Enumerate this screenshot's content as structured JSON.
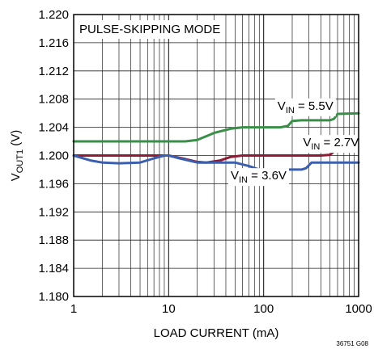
{
  "chart_data": {
    "type": "line",
    "annotation": "PULSE-SKIPPING MODE",
    "xlabel": "LOAD CURRENT (mA)",
    "ylabel_main": "V",
    "ylabel_sub": "OUT1",
    "ylabel_tail": " (V)",
    "figure_id": "36751 G08",
    "xscale": "log",
    "xlim": [
      1,
      1000
    ],
    "ylim": [
      1.18,
      1.22
    ],
    "grid": true,
    "x_ticks": [
      {
        "value": 1,
        "label": "1"
      },
      {
        "value": 10,
        "label": "10"
      },
      {
        "value": 100,
        "label": "100"
      },
      {
        "value": 1000,
        "label": "1000"
      }
    ],
    "y_ticks": [
      {
        "value": 1.18,
        "label": "1.180"
      },
      {
        "value": 1.184,
        "label": "1.184"
      },
      {
        "value": 1.188,
        "label": "1.188"
      },
      {
        "value": 1.192,
        "label": "1.192"
      },
      {
        "value": 1.196,
        "label": "1.196"
      },
      {
        "value": 1.2,
        "label": "1.200"
      },
      {
        "value": 1.204,
        "label": "1.204"
      },
      {
        "value": 1.208,
        "label": "1.208"
      },
      {
        "value": 1.212,
        "label": "1.212"
      },
      {
        "value": 1.216,
        "label": "1.216"
      },
      {
        "value": 1.22,
        "label": "1.220"
      }
    ],
    "series": [
      {
        "label_main": "V",
        "label_sub": "IN",
        "label_tail": " = 5.5V",
        "color": "#3a8f48",
        "label_pos": {
          "x": 140,
          "y": 1.2065
        },
        "points": [
          [
            1,
            1.202
          ],
          [
            4,
            1.202
          ],
          [
            10,
            1.202
          ],
          [
            15,
            1.202
          ],
          [
            20,
            1.2022
          ],
          [
            30,
            1.2032
          ],
          [
            45,
            1.2038
          ],
          [
            60,
            1.204
          ],
          [
            100,
            1.204
          ],
          [
            150,
            1.204
          ],
          [
            180,
            1.2042
          ],
          [
            200,
            1.2049
          ],
          [
            250,
            1.205
          ],
          [
            500,
            1.205
          ],
          [
            550,
            1.2052
          ],
          [
            600,
            1.2059
          ],
          [
            1000,
            1.206
          ]
        ]
      },
      {
        "label_main": "V",
        "label_sub": "IN",
        "label_tail": " = 2.7V",
        "color": "#8c1c35",
        "label_pos": {
          "x": 260,
          "y": 1.2013
        },
        "points": [
          [
            1,
            1.2
          ],
          [
            7,
            1.2
          ],
          [
            10,
            1.2
          ],
          [
            15,
            1.1995
          ],
          [
            20,
            1.1991
          ],
          [
            25,
            1.199
          ],
          [
            35,
            1.1993
          ],
          [
            45,
            1.1998
          ],
          [
            60,
            1.2
          ],
          [
            100,
            1.2
          ],
          [
            400,
            1.2
          ],
          [
            500,
            1.2001
          ],
          [
            600,
            1.201
          ],
          [
            1000,
            1.201
          ]
        ]
      },
      {
        "label_main": "V",
        "label_sub": "IN",
        "label_tail": " = 3.6V",
        "color": "#3b5fae",
        "label_pos": {
          "x": 45,
          "y": 1.1966
        },
        "points": [
          [
            1,
            1.2
          ],
          [
            1.5,
            1.1993
          ],
          [
            2,
            1.199
          ],
          [
            3,
            1.1989
          ],
          [
            5,
            1.199
          ],
          [
            7,
            1.1996
          ],
          [
            9,
            1.2
          ],
          [
            10,
            1.2
          ],
          [
            13,
            1.1996
          ],
          [
            20,
            1.199
          ],
          [
            50,
            1.199
          ],
          [
            70,
            1.1985
          ],
          [
            90,
            1.198
          ],
          [
            150,
            1.198
          ],
          [
            250,
            1.198
          ],
          [
            280,
            1.1982
          ],
          [
            320,
            1.199
          ],
          [
            1000,
            1.199
          ]
        ]
      }
    ]
  }
}
